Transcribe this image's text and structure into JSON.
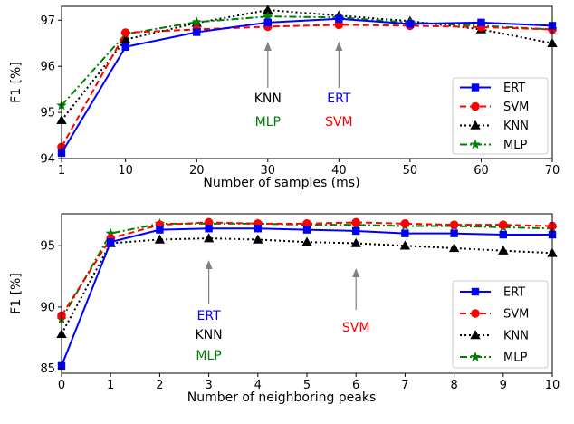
{
  "colors": {
    "ERT": "#0000ff",
    "SVM": "#ff0000",
    "KNN": "#000000",
    "MLP": "#008000",
    "arrow": "#808080"
  },
  "chart_data": [
    {
      "type": "line",
      "xlabel": "Number of samples (ms)",
      "ylabel": "F1 [%]",
      "xlim": [
        1,
        70
      ],
      "ylim": [
        94,
        97.3
      ],
      "x_scale": "categorical",
      "x": [
        1,
        10,
        20,
        30,
        40,
        50,
        60,
        70
      ],
      "xticks": [
        "1",
        "10",
        "20",
        "30",
        "40",
        "50",
        "60",
        "70"
      ],
      "yticks": [
        "94",
        "95",
        "96",
        "97"
      ],
      "legend": "right",
      "series": [
        {
          "name": "ERT",
          "values": [
            94.12,
            96.42,
            96.74,
            96.95,
            97.03,
            96.92,
            96.95,
            96.88
          ]
        },
        {
          "name": "SVM",
          "values": [
            94.25,
            96.73,
            96.8,
            96.86,
            96.9,
            96.88,
            96.85,
            96.8
          ]
        },
        {
          "name": "KNN",
          "values": [
            94.83,
            96.58,
            96.94,
            97.22,
            97.1,
            96.98,
            96.8,
            96.5
          ]
        },
        {
          "name": "MLP",
          "values": [
            95.15,
            96.7,
            96.96,
            97.08,
            97.06,
            96.95,
            96.88,
            96.8
          ]
        }
      ],
      "annotations": [
        {
          "x": 30,
          "labels": [
            {
              "text": "KNN",
              "series": "KNN"
            },
            {
              "text": "MLP",
              "series": "MLP"
            }
          ]
        },
        {
          "x": 40,
          "labels": [
            {
              "text": "ERT",
              "series": "ERT"
            },
            {
              "text": "SVM",
              "series": "SVM"
            }
          ]
        }
      ]
    },
    {
      "type": "line",
      "xlabel": "Number of neighboring peaks",
      "ylabel": "F1 [%]",
      "xlim": [
        0,
        10
      ],
      "ylim": [
        84.6,
        97.6
      ],
      "x_scale": "linear",
      "x": [
        0,
        1,
        2,
        3,
        4,
        5,
        6,
        7,
        8,
        9,
        10
      ],
      "xticks": [
        "0",
        "1",
        "2",
        "3",
        "4",
        "5",
        "6",
        "7",
        "8",
        "9",
        "10"
      ],
      "yticks": [
        "85",
        "90",
        "95"
      ],
      "legend": "right",
      "series": [
        {
          "name": "ERT",
          "values": [
            85.2,
            95.3,
            96.3,
            96.4,
            96.4,
            96.3,
            96.2,
            96.0,
            96.0,
            95.9,
            95.9
          ]
        },
        {
          "name": "SVM",
          "values": [
            89.3,
            95.6,
            96.7,
            96.9,
            96.8,
            96.8,
            96.9,
            96.8,
            96.7,
            96.7,
            96.6
          ]
        },
        {
          "name": "KNN",
          "values": [
            87.8,
            95.2,
            95.5,
            95.6,
            95.5,
            95.3,
            95.2,
            95.0,
            94.8,
            94.6,
            94.4
          ]
        },
        {
          "name": "MLP",
          "values": [
            89.0,
            96.0,
            96.8,
            96.8,
            96.8,
            96.7,
            96.7,
            96.6,
            96.6,
            96.5,
            96.4
          ]
        }
      ],
      "annotations": [
        {
          "x": 3,
          "labels": [
            {
              "text": "ERT",
              "series": "ERT"
            },
            {
              "text": "KNN",
              "series": "KNN"
            },
            {
              "text": "MLP",
              "series": "MLP"
            }
          ]
        },
        {
          "x": 6,
          "labels": [
            {
              "text": "SVM",
              "series": "SVM"
            }
          ]
        }
      ]
    }
  ]
}
